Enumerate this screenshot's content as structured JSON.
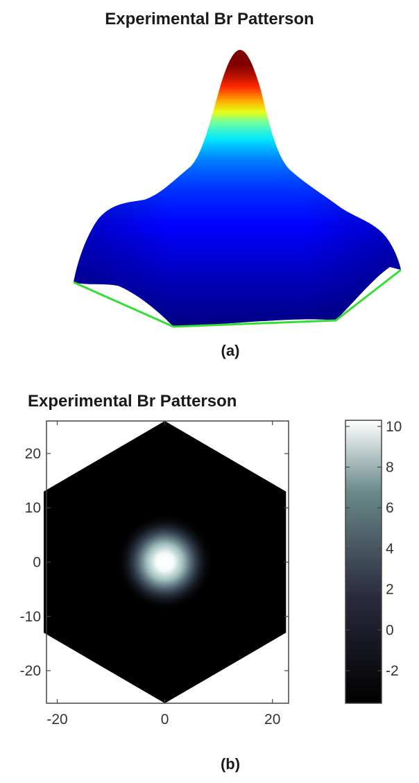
{
  "chart_data": [
    {
      "panel": "(a)",
      "type": "surface",
      "title": "Experimental Br Patterson",
      "colormap": "jet",
      "grid": false,
      "axes_visible": false,
      "boundary_color": "#33dd33"
    },
    {
      "panel": "(b)",
      "type": "heatmap",
      "title": "Experimental Br Patterson",
      "colormap": "bone",
      "xlim": [
        -22,
        23
      ],
      "ylim": [
        -26,
        26
      ],
      "xticks": [
        -20,
        0,
        20
      ],
      "yticks": [
        -20,
        -10,
        0,
        10,
        20
      ],
      "hexagon_circumradius": 26,
      "peak": {
        "x": 0,
        "y": 0,
        "value": 10.2
      },
      "background_value": -3.6,
      "colorbar": {
        "range": [
          -3.6,
          10.3
        ],
        "ticks": [
          -2,
          0,
          2,
          4,
          6,
          8,
          10
        ]
      }
    }
  ]
}
